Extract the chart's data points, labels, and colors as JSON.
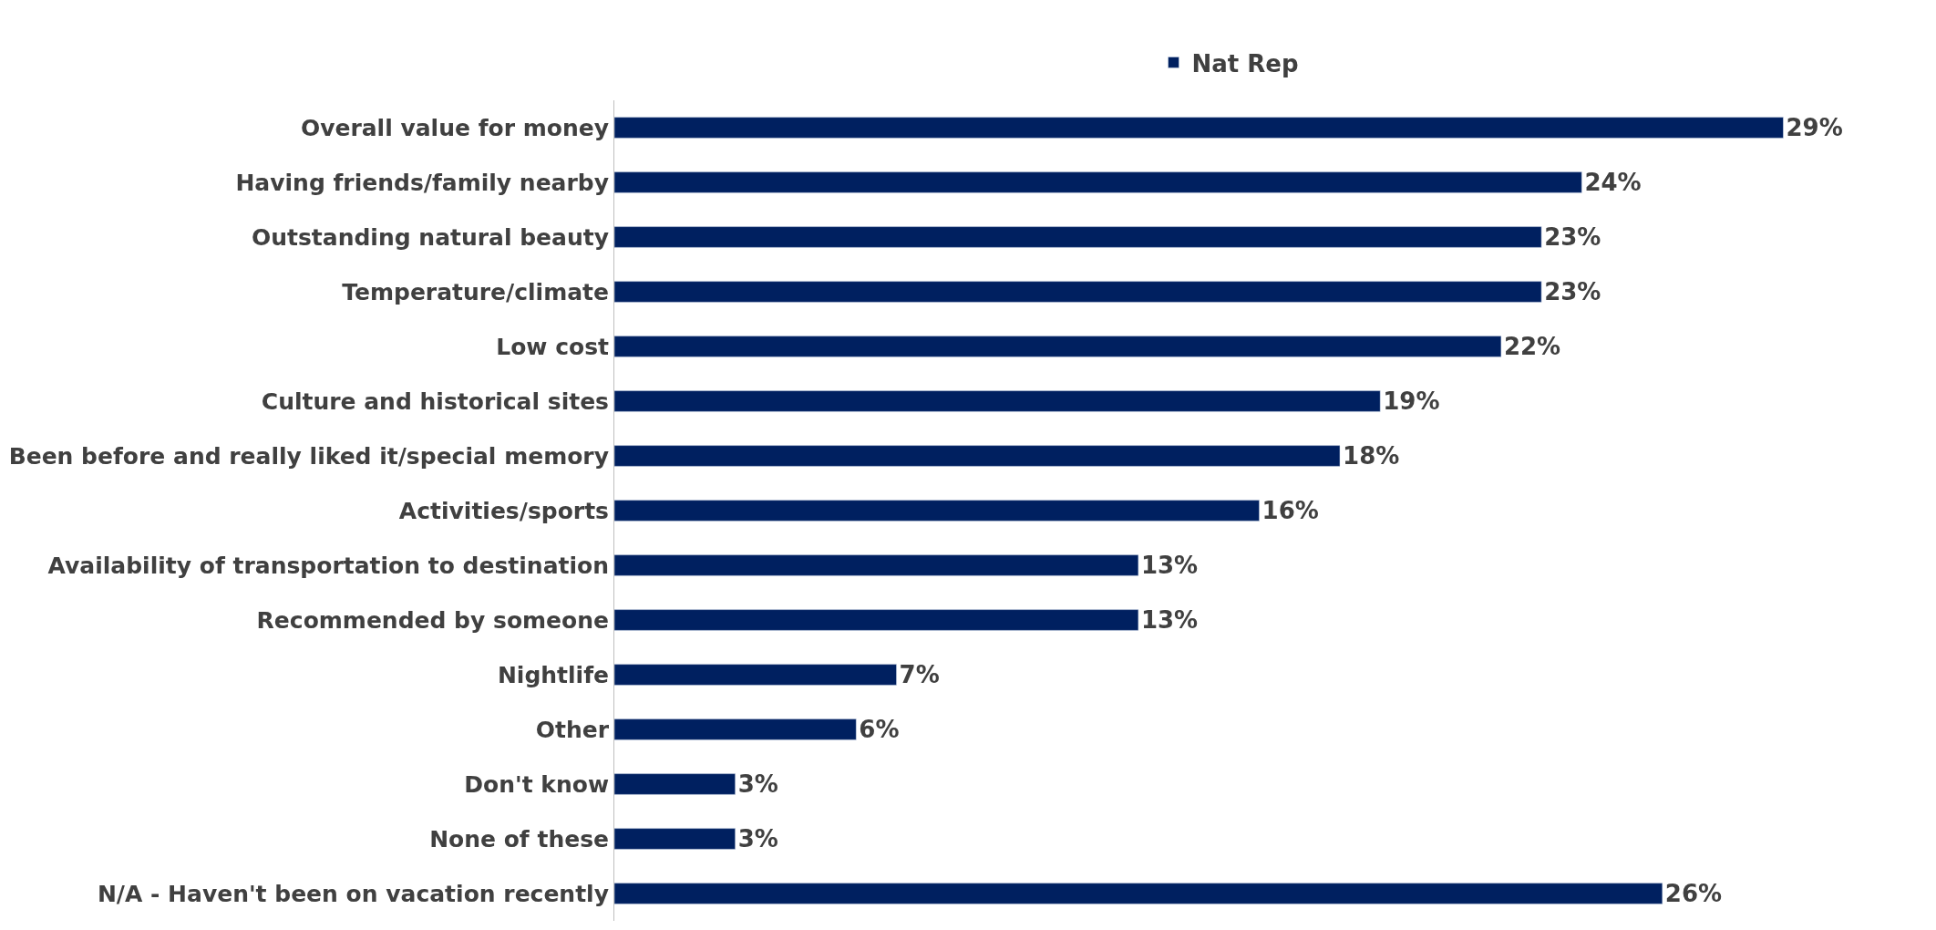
{
  "chart_data": {
    "type": "bar",
    "orientation": "horizontal",
    "legend": "top",
    "tick_labels": "y",
    "categories": [
      "Overall value for money",
      "Having friends/family nearby",
      "Outstanding natural beauty",
      "Temperature/climate",
      "Low cost",
      "Culture and historical sites",
      "Been before and really liked it/special memory",
      "Activities/sports",
      "Availability of transportation to destination",
      "Recommended by someone",
      "Nightlife",
      "Other",
      "Don't know",
      "None of these",
      "N/A - Haven't been on vacation recently"
    ],
    "series": [
      {
        "name": "Nat Rep",
        "color": "#002060",
        "values": [
          29,
          24,
          23,
          23,
          22,
          19,
          18,
          16,
          13,
          13,
          7,
          6,
          3,
          3,
          26
        ],
        "value_labels": [
          "29%",
          "24%",
          "23%",
          "23%",
          "22%",
          "19%",
          "18%",
          "16%",
          "13%",
          "13%",
          "7%",
          "6%",
          "3%",
          "3%",
          "26%"
        ]
      }
    ]
  }
}
